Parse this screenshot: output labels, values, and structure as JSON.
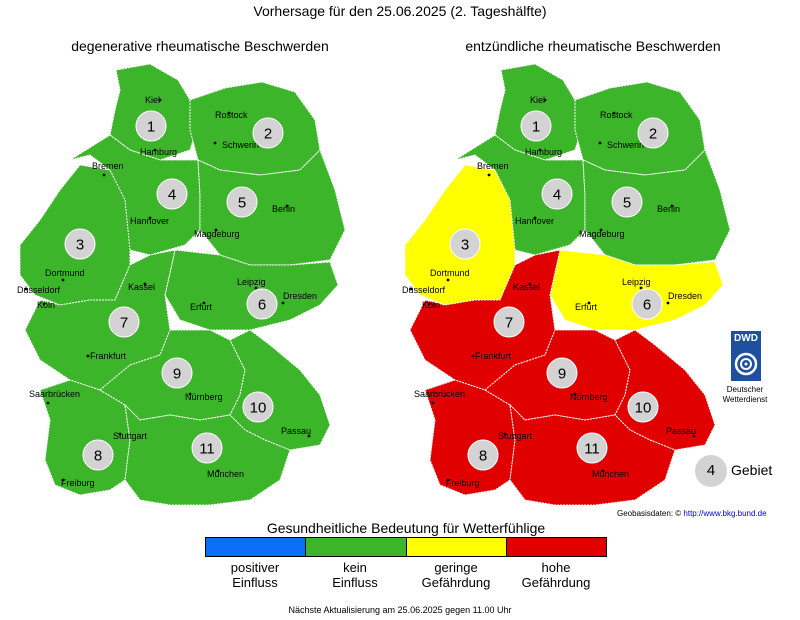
{
  "title": "Vorhersage für den 25.06.2025 (2. Tageshälfte)",
  "maps": [
    {
      "title": "degenerative rheumatische Beschwerden",
      "regions": [
        {
          "id": 1,
          "label": "1",
          "level": "kein Einfluss"
        },
        {
          "id": 2,
          "label": "2",
          "level": "kein Einfluss"
        },
        {
          "id": 3,
          "label": "3",
          "level": "kein Einfluss"
        },
        {
          "id": 4,
          "label": "4",
          "level": "kein Einfluss"
        },
        {
          "id": 5,
          "label": "5",
          "level": "kein Einfluss"
        },
        {
          "id": 6,
          "label": "6",
          "level": "kein Einfluss"
        },
        {
          "id": 7,
          "label": "7",
          "level": "kein Einfluss"
        },
        {
          "id": 8,
          "label": "8",
          "level": "kein Einfluss"
        },
        {
          "id": 9,
          "label": "9",
          "level": "kein Einfluss"
        },
        {
          "id": 10,
          "label": "10",
          "level": "kein Einfluss"
        },
        {
          "id": 11,
          "label": "11",
          "level": "kein Einfluss"
        }
      ]
    },
    {
      "title": "entzündliche rheumatische Beschwerden",
      "regions": [
        {
          "id": 1,
          "label": "1",
          "level": "kein Einfluss"
        },
        {
          "id": 2,
          "label": "2",
          "level": "kein Einfluss"
        },
        {
          "id": 3,
          "label": "3",
          "level": "geringe Gefährdung"
        },
        {
          "id": 4,
          "label": "4",
          "level": "kein Einfluss"
        },
        {
          "id": 5,
          "label": "5",
          "level": "kein Einfluss"
        },
        {
          "id": 6,
          "label": "6",
          "level": "geringe Gefährdung"
        },
        {
          "id": 7,
          "label": "7",
          "level": "hohe Gefährdung"
        },
        {
          "id": 8,
          "label": "8",
          "level": "hohe Gefährdung"
        },
        {
          "id": 9,
          "label": "9",
          "level": "hohe Gefährdung"
        },
        {
          "id": 10,
          "label": "10",
          "level": "hohe Gefährdung"
        },
        {
          "id": 11,
          "label": "11",
          "level": "hohe Gefährdung"
        }
      ]
    }
  ],
  "cities": [
    "Kiel",
    "Rostock",
    "Hamburg",
    "Schwerin",
    "Bremen",
    "Hannover",
    "Berlin",
    "Magdeburg",
    "Dortmund",
    "Düsseldorf",
    "Köln",
    "Kassel",
    "Leipzig",
    "Dresden",
    "Erfurt",
    "Frankfurt",
    "Saarbrücken",
    "Nürnberg",
    "Passau",
    "Stuttgart",
    "Freiburg",
    "München"
  ],
  "legend": {
    "title": "Gesundheitliche Bedeutung für Wetterfühlige",
    "items": [
      {
        "label_line1": "positiver",
        "label_line2": "Einfluss",
        "key": "positiver Einfluss",
        "color": "#0a6ef7"
      },
      {
        "label_line1": "kein",
        "label_line2": "Einfluss",
        "key": "kein Einfluss",
        "color": "#3db52b"
      },
      {
        "label_line1": "geringe",
        "label_line2": "Gefährdung",
        "key": "geringe Gefährdung",
        "color": "#ffff00"
      },
      {
        "label_line1": "hohe",
        "label_line2": "Gefährdung",
        "key": "hohe Gefährdung",
        "color": "#e00000"
      }
    ]
  },
  "area_legend": {
    "number": "4",
    "label": "Gebiet"
  },
  "logo": {
    "abbr": "DWD",
    "name_line1": "Deutscher",
    "name_line2": "Wetterdienst"
  },
  "geodata": {
    "label": "Geobasisdaten: ©",
    "url_text": "http://www.bkg.bund.de"
  },
  "footer": "Nächste Aktualisierung am 25.06.2025 gegen 11.00 Uhr"
}
